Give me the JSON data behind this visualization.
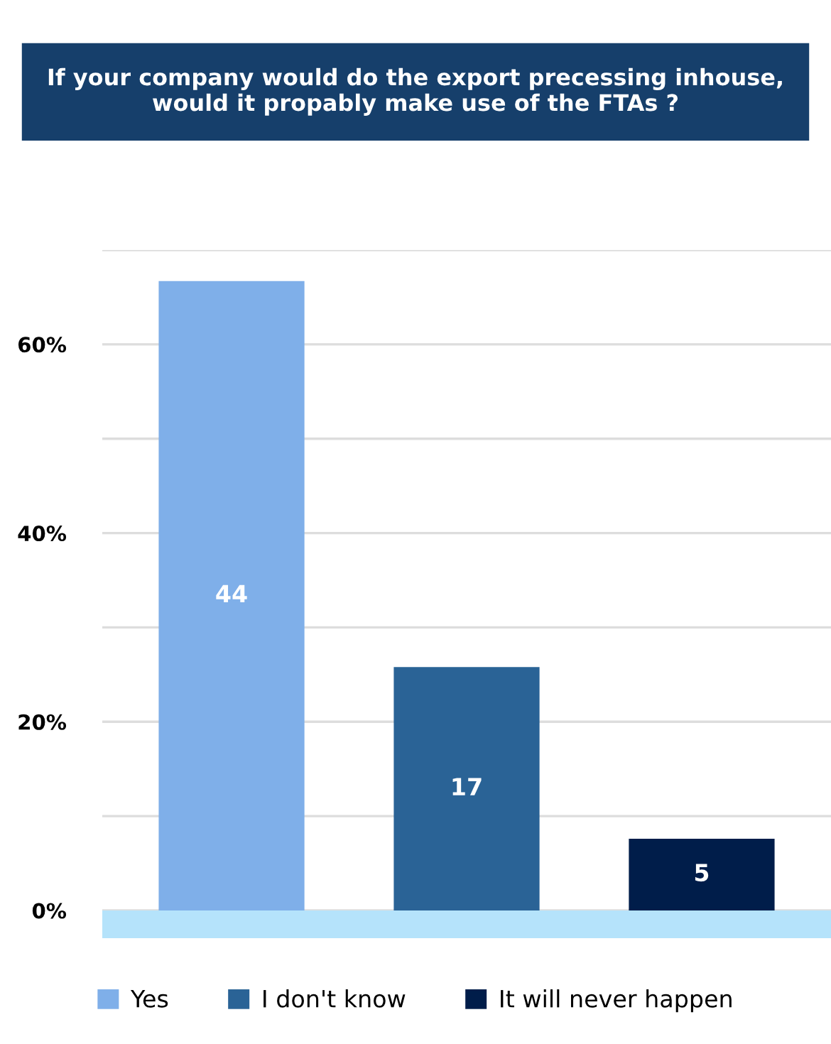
{
  "chart_data": {
    "type": "bar",
    "title": "If your company would do the export precessing inhouse,\nwould it propably make use of the FTAs ?",
    "categories": [
      null,
      null,
      null
    ],
    "series": [
      {
        "name": "Yes",
        "color": "#7fafe9",
        "values": [
          66.7,
          null,
          null
        ]
      },
      {
        "name": "I don't know",
        "color": "#2a6396",
        "values": [
          null,
          25.8,
          null
        ]
      },
      {
        "name": "It will never happen",
        "color": "#001d4a",
        "values": [
          null,
          null,
          7.6
        ]
      }
    ],
    "annotations": [
      "44",
      "17",
      "5"
    ],
    "ylim": [
      0,
      70
    ],
    "yticks": [
      {
        "value": 0,
        "label": "0%"
      },
      {
        "value": 10,
        "label": null
      },
      {
        "value": 20,
        "label": "20%"
      },
      {
        "value": 30,
        "label": null
      },
      {
        "value": 40,
        "label": "40%"
      },
      {
        "value": 50,
        "label": null
      },
      {
        "value": 60,
        "label": "60%"
      },
      {
        "value": 70,
        "label": null
      }
    ],
    "tick_labels": "y",
    "grid": "y",
    "legend": "bottom"
  }
}
